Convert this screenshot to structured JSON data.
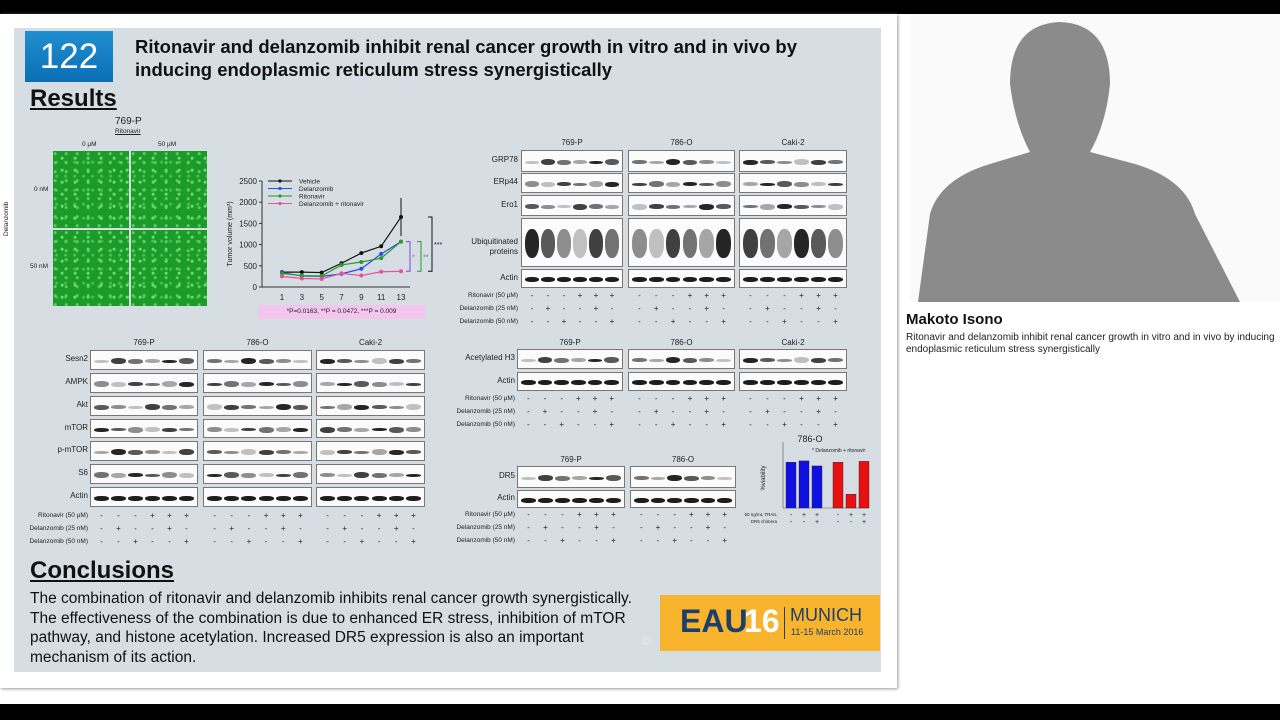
{
  "poster": {
    "number": "122",
    "title": "Ritonavir and delanzomib inhibit renal cancer growth in vitro and in vivo by inducing  endoplasmic reticulum stress synergistically",
    "results_heading": "Results",
    "conclusions_heading": "Conclusions",
    "conclusions_text": "The combination of ritonavir and delanzomib inhibits renal cancer growth synergistically. The effectiveness of the combination is due to enhanced ER stress, inhibition of mTOR pathway, and histone acetylation. Increased DR5 expression is also an important mechanism of its action.",
    "copyright": "©",
    "logo": {
      "eau": "EAU",
      "year": "16",
      "city": "MUNICH",
      "dates": "11-15 March 2016"
    },
    "colors": {
      "background": "#d6dee4",
      "number_box": "#1f8fd0",
      "logo_bg": "#f7b42c",
      "logo_text": "#1d3f6e"
    }
  },
  "microscopy": {
    "cell_line": "769-P",
    "col_header": "Ritonavir",
    "cols": [
      "0 µM",
      "50 µM"
    ],
    "row_header": "Delanzomib",
    "rows": [
      "0 nM",
      "50 nM"
    ]
  },
  "treatments": {
    "labels": [
      "Ritonavir (50 µM)",
      "Delanzomib (25 nM)",
      "Delanzomib (50 nM)"
    ],
    "pattern": [
      [
        "-",
        "-",
        "-",
        "+",
        "+",
        "+"
      ],
      [
        "-",
        "+",
        "-",
        "-",
        "+",
        "-"
      ],
      [
        "-",
        "-",
        "+",
        "-",
        "-",
        "+"
      ]
    ]
  },
  "blots": {
    "er_stress": {
      "cell_lines": [
        "769-P",
        "786-O",
        "Caki-2"
      ],
      "rows": [
        "GRP78",
        "ERp44",
        "Ero1",
        "Ubiquitinated proteins",
        "Actin"
      ]
    },
    "mtor": {
      "cell_lines": [
        "769-P",
        "786-O",
        "Caki-2"
      ],
      "rows": [
        "Sesn2",
        "AMPK",
        "Akt",
        "mTOR",
        "p-mTOR",
        "S6",
        "Actin"
      ]
    },
    "histone": {
      "cell_lines": [
        "769-P",
        "786-O",
        "Caki-2"
      ],
      "rows": [
        "Acetylated H3",
        "Actin"
      ]
    },
    "dr5": {
      "cell_lines": [
        "769-P",
        "786-O"
      ],
      "rows": [
        "DR5",
        "Actin"
      ]
    }
  },
  "chart_data": [
    {
      "type": "line",
      "ylabel": "Tumor volume (mm³)",
      "xlabel": "",
      "x": [
        1,
        3,
        5,
        7,
        9,
        11,
        13
      ],
      "ylim": [
        0,
        2500
      ],
      "yticks": [
        0,
        500,
        1000,
        1500,
        2000,
        2500
      ],
      "legend_position": "top-left",
      "series": [
        {
          "name": "Vehicle",
          "color": "#111111",
          "values": [
            350,
            350,
            340,
            560,
            800,
            960,
            1650
          ]
        },
        {
          "name": "Delanzomib",
          "color": "#2a50e0",
          "values": [
            340,
            260,
            250,
            310,
            430,
            780,
            1070
          ]
        },
        {
          "name": "Ritonavir",
          "color": "#2a9a2a",
          "values": [
            320,
            270,
            260,
            520,
            590,
            680,
            1070
          ]
        },
        {
          "name": "Delanzomib + ritonavir",
          "color": "#e8509a",
          "values": [
            250,
            200,
            190,
            320,
            270,
            360,
            370
          ]
        }
      ],
      "significance": [
        "*",
        "**",
        "***"
      ],
      "annotation": "*P=0.0163, **P = 0.0472, ***P = 0.009"
    },
    {
      "type": "bar",
      "title": "786-O",
      "subtitle": "* Delanzomib + ritonavir",
      "ylabel": "%viability",
      "ylim": [
        0,
        140
      ],
      "row_labels": [
        "50 ng/mL TRAIL",
        "DR5 chimera"
      ],
      "groups": [
        {
          "color": "#1010e0",
          "values": [
            100,
            103,
            92
          ],
          "trail": [
            "-",
            "+",
            "+"
          ],
          "dr5": [
            "-",
            "-",
            "+"
          ]
        },
        {
          "color": "#e81010",
          "values": [
            100,
            30,
            102
          ],
          "trail": [
            "-",
            "+",
            "+"
          ],
          "dr5": [
            "-",
            "-",
            "+"
          ]
        }
      ]
    }
  ],
  "sidebar": {
    "speaker": "Makoto Isono",
    "talk_title": "Ritonavir and delanzomib inhibit renal cancer growth in vitro and in vivo by inducing endoplasmic reticulum stress synergistically"
  }
}
